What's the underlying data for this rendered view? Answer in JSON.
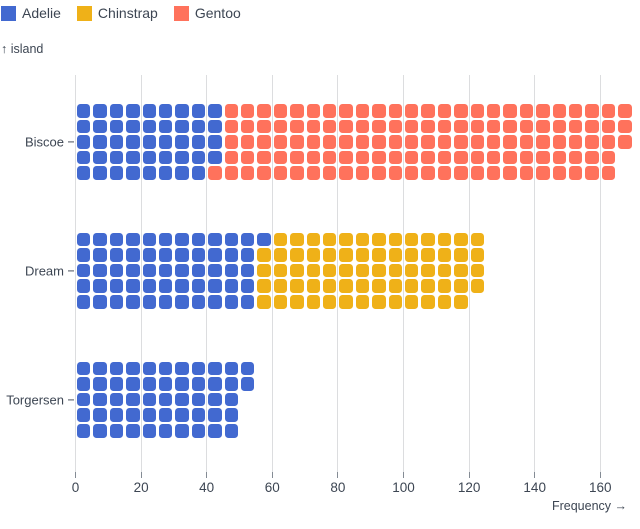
{
  "chart_data": {
    "type": "waffle",
    "orientation": "horizontal",
    "xlabel": "Frequency",
    "ylabel": "island",
    "x_axis_title": "Frequency →",
    "y_axis_title": "↑ island",
    "unit_per_cell": 1,
    "cells_per_column": 5,
    "x_units_per_column": 5,
    "fill_order": "column-major-top-down",
    "categories": [
      "Biscoe",
      "Dream",
      "Torgersen"
    ],
    "series": [
      {
        "name": "Adelie",
        "color": "#4269d0",
        "values": [
          44,
          56,
          52
        ]
      },
      {
        "name": "Chinstrap",
        "color": "#efb118",
        "values": [
          0,
          68,
          0
        ]
      },
      {
        "name": "Gentoo",
        "color": "#ff725c",
        "values": [
          124,
          0,
          0
        ]
      }
    ],
    "totals": [
      168,
      124,
      52
    ],
    "x_ticks": [
      0,
      20,
      40,
      60,
      80,
      100,
      120,
      140,
      160
    ],
    "xlim": [
      0,
      172
    ],
    "grid": true,
    "legend_position": "top-left"
  },
  "colors": {
    "text": "#3d4653",
    "grid": "#dcdddf",
    "tick": "#848b94",
    "y_tick": "#4a525e"
  }
}
